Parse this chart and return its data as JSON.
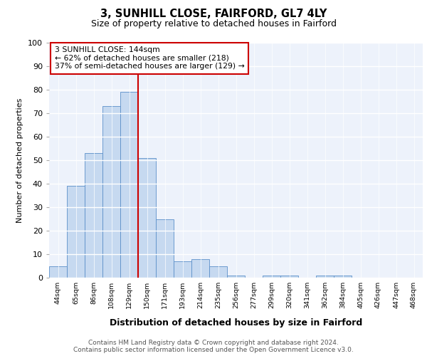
{
  "title1": "3, SUNHILL CLOSE, FAIRFORD, GL7 4LY",
  "title2": "Size of property relative to detached houses in Fairford",
  "xlabel": "Distribution of detached houses by size in Fairford",
  "ylabel": "Number of detached properties",
  "categories": [
    "44sqm",
    "65sqm",
    "86sqm",
    "108sqm",
    "129sqm",
    "150sqm",
    "171sqm",
    "193sqm",
    "214sqm",
    "235sqm",
    "256sqm",
    "277sqm",
    "299sqm",
    "320sqm",
    "341sqm",
    "362sqm",
    "384sqm",
    "405sqm",
    "426sqm",
    "447sqm",
    "468sqm"
  ],
  "values": [
    5,
    39,
    53,
    73,
    79,
    51,
    25,
    7,
    8,
    5,
    1,
    0,
    1,
    1,
    0,
    1,
    1,
    0,
    0,
    0,
    0
  ],
  "bar_color": "#c6d9f0",
  "bar_edge_color": "#5b8fc9",
  "red_line_x": 5,
  "annotation_text": "3 SUNHILL CLOSE: 144sqm\n← 62% of detached houses are smaller (218)\n37% of semi-detached houses are larger (129) →",
  "annotation_box_color": "#ffffff",
  "annotation_box_edge": "#cc0000",
  "footer1": "Contains HM Land Registry data © Crown copyright and database right 2024.",
  "footer2": "Contains public sector information licensed under the Open Government Licence v3.0.",
  "ylim": [
    0,
    100
  ],
  "background_color": "#edf2fb"
}
